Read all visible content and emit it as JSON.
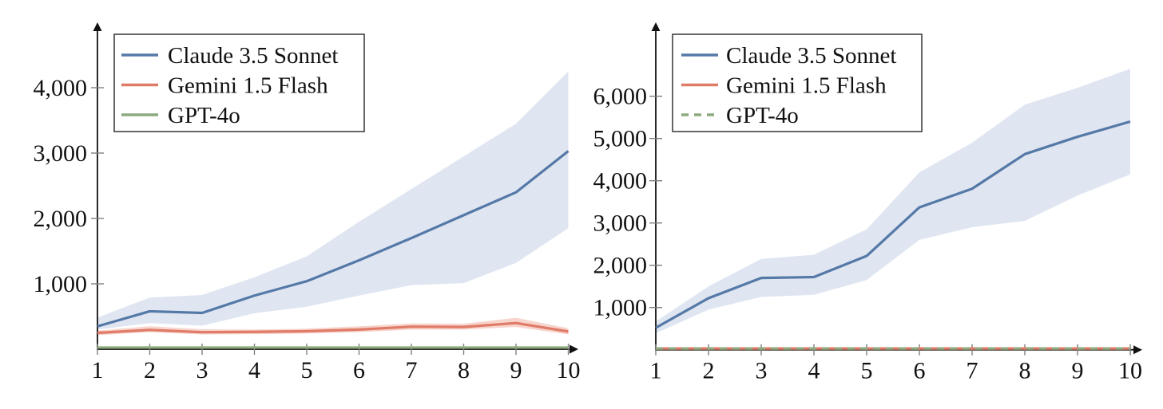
{
  "page": {
    "background": "#ffffff"
  },
  "chart_data": [
    {
      "type": "line",
      "title": "",
      "xlabel": "",
      "ylabel": "",
      "x": [
        1,
        2,
        3,
        4,
        5,
        6,
        7,
        8,
        9,
        10
      ],
      "xtick_labels": [
        "1",
        "2",
        "3",
        "4",
        "5",
        "6",
        "7",
        "8",
        "9",
        "10"
      ],
      "yticks": [
        {
          "value": 1000,
          "label": "1,000"
        },
        {
          "value": 2000,
          "label": "2,000"
        },
        {
          "value": 3000,
          "label": "3,000"
        },
        {
          "value": 4000,
          "label": "4,000"
        }
      ],
      "ylim": [
        0,
        4950
      ],
      "grid": false,
      "legend_position": "top-left",
      "axis_color": "#111111",
      "tick_color": "#808080",
      "series": [
        {
          "name": "Claude 3.5 Sonnet",
          "color": "#5579a7",
          "style": "solid",
          "values": [
            350,
            580,
            555,
            820,
            1040,
            1360,
            1700,
            2050,
            2400,
            3030
          ],
          "band": {
            "low": [
              300,
              400,
              360,
              550,
              650,
              820,
              980,
              1010,
              1320,
              1850
            ],
            "high": [
              485,
              790,
              830,
              1100,
              1420,
              1950,
              2450,
              2950,
              3450,
              4250
            ],
            "color": "#dce3ef"
          }
        },
        {
          "name": "Gemini 1.5 Flash",
          "color": "#e07b68",
          "style": "solid",
          "values": [
            250,
            295,
            260,
            265,
            275,
            300,
            345,
            340,
            400,
            270
          ],
          "band": {
            "low": [
              215,
              260,
              225,
              230,
              240,
              260,
              300,
              300,
              340,
              225
            ],
            "high": [
              285,
              350,
              305,
              300,
              315,
              350,
              395,
              390,
              480,
              320
            ],
            "color": "#f6cfc7"
          }
        },
        {
          "name": "GPT-4o",
          "color": "#8caa7d",
          "style": "solid",
          "values": [
            25,
            25,
            25,
            25,
            25,
            25,
            25,
            25,
            25,
            25
          ]
        }
      ]
    },
    {
      "type": "line",
      "title": "",
      "xlabel": "",
      "ylabel": "",
      "x": [
        1,
        2,
        3,
        4,
        5,
        6,
        7,
        8,
        9,
        10
      ],
      "xtick_labels": [
        "1",
        "2",
        "3",
        "4",
        "5",
        "6",
        "7",
        "8",
        "9",
        "10"
      ],
      "yticks": [
        {
          "value": 1000,
          "label": "1,000"
        },
        {
          "value": 2000,
          "label": "2,000"
        },
        {
          "value": 3000,
          "label": "3,000"
        },
        {
          "value": 4000,
          "label": "4,000"
        },
        {
          "value": 5000,
          "label": "5,000"
        },
        {
          "value": 6000,
          "label": "6,000"
        }
      ],
      "ylim": [
        0,
        7700
      ],
      "grid": false,
      "legend_position": "top-left",
      "axis_color": "#111111",
      "tick_color": "#808080",
      "series": [
        {
          "name": "Claude 3.5 Sonnet",
          "color": "#5579a7",
          "style": "solid",
          "values": [
            520,
            1220,
            1700,
            1720,
            2220,
            3370,
            3810,
            4630,
            5040,
            5400
          ],
          "band": {
            "low": [
              390,
              950,
              1250,
              1300,
              1650,
              2600,
              2900,
              3050,
              3650,
              4150
            ],
            "high": [
              670,
              1500,
              2150,
              2250,
              2850,
              4200,
              4900,
              5800,
              6200,
              6650
            ],
            "color": "#dce3ef"
          }
        },
        {
          "name": "Gemini 1.5 Flash",
          "color": "#e07b68",
          "style": "solid",
          "values": [
            30,
            30,
            30,
            30,
            30,
            30,
            30,
            30,
            30,
            30
          ]
        },
        {
          "name": "GPT-4o",
          "color": "#8caa7d",
          "style": "dashed",
          "values": [
            30,
            30,
            30,
            30,
            30,
            30,
            30,
            30,
            30,
            30
          ]
        }
      ]
    }
  ]
}
